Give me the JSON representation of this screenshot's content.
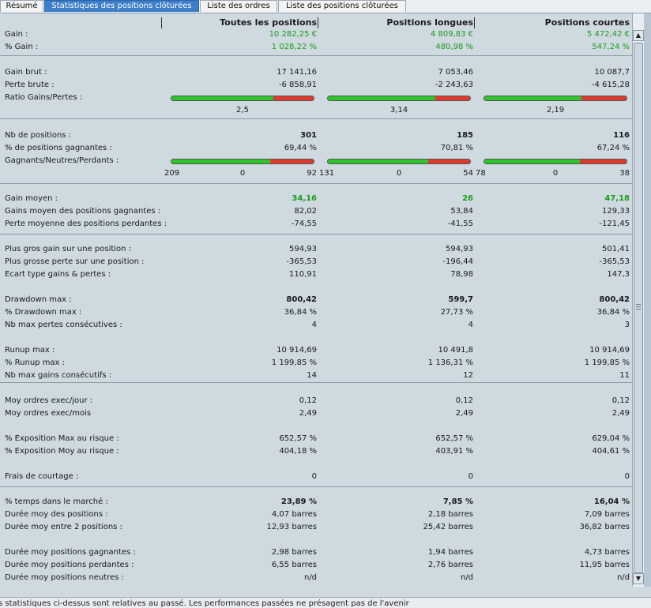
{
  "tabs": [
    {
      "label": "Résumé"
    },
    {
      "label": "Statistiques des positions clôturées"
    },
    {
      "label": "Liste des ordres"
    },
    {
      "label": "Liste des positions clôturées"
    }
  ],
  "headers": {
    "all": "Toutes les positions",
    "long": "Positions longues",
    "short": "Positions courtes"
  },
  "rows": {
    "gain": {
      "label": "Gain :",
      "v": [
        "10 282,25 €",
        "4 809,83 €",
        "5 472,42 €"
      ]
    },
    "pct_gain": {
      "label": "% Gain :",
      "v": [
        "1 028,22 %",
        "480,98 %",
        "547,24 %"
      ]
    },
    "gain_brut": {
      "label": "Gain brut :",
      "v": [
        "17 141,16",
        "7 053,46",
        "10 087,7"
      ]
    },
    "perte_brute": {
      "label": "Perte brute :",
      "v": [
        "-6 858,91",
        "-2 243,63",
        "-4 615,28"
      ]
    },
    "ratio": {
      "label": "Ratio Gains/Pertes :",
      "v": [
        "2,5",
        "3,14",
        "2,19"
      ],
      "green_fraction": [
        0.714,
        0.758,
        0.686
      ]
    },
    "nb_pos": {
      "label": "Nb de positions :",
      "v": [
        "301",
        "185",
        "116"
      ]
    },
    "pct_gagnantes": {
      "label": "% de positions gagnantes :",
      "v": [
        "69,44 %",
        "70,81 %",
        "67,24 %"
      ]
    },
    "gnp": {
      "label": "Gagnants/Neutres/Perdants :",
      "w": [
        "209",
        "131",
        "78"
      ],
      "n": [
        "0",
        "0",
        "0"
      ],
      "l": [
        "92",
        "54",
        "38"
      ],
      "green_fraction": [
        0.694,
        0.708,
        0.672
      ]
    },
    "gain_moyen": {
      "label": "Gain moyen :",
      "v": [
        "34,16",
        "26",
        "47,18"
      ]
    },
    "gains_moy_gagn": {
      "label": "Gains moyen des positions gagnantes :",
      "v": [
        "82,02",
        "53,84",
        "129,33"
      ]
    },
    "perte_moy_perd": {
      "label": "Perte moyenne des positions perdantes :",
      "v": [
        "-74,55",
        "-41,55",
        "-121,45"
      ]
    },
    "plus_gros_gain": {
      "label": "Plus gros gain sur une position :",
      "v": [
        "594,93",
        "594,93",
        "501,41"
      ]
    },
    "plus_grosse_perte": {
      "label": "Plus grosse perte sur une position :",
      "v": [
        "-365,53",
        "-196,44",
        "-365,53"
      ]
    },
    "ecart_type": {
      "label": "Ecart type gains & pertes :",
      "v": [
        "110,91",
        "78,98",
        "147,3"
      ]
    },
    "drawdown": {
      "label": "Drawdown max :",
      "v": [
        "800,42",
        "599,7",
        "800,42"
      ]
    },
    "pct_drawdown": {
      "label": "% Drawdown max :",
      "v": [
        "36,84 %",
        "27,73 %",
        "36,84 %"
      ]
    },
    "nb_pertes_cons": {
      "label": "Nb max pertes consécutives :",
      "v": [
        "4",
        "4",
        "3"
      ]
    },
    "runup": {
      "label": "Runup max :",
      "v": [
        "10 914,69",
        "10 491,8",
        "10 914,69"
      ]
    },
    "pct_runup": {
      "label": "% Runup max :",
      "v": [
        "1 199,85 %",
        "1 136,31 %",
        "1 199,85 %"
      ]
    },
    "nb_gains_cons": {
      "label": "Nb max gains consécutifs :",
      "v": [
        "14",
        "12",
        "11"
      ]
    },
    "ordres_jour": {
      "label": "Moy ordres exec/jour :",
      "v": [
        "0,12",
        "0,12",
        "0,12"
      ]
    },
    "ordres_mois": {
      "label": "Moy ordres exec/mois",
      "v": [
        "2,49",
        "2,49",
        "2,49"
      ]
    },
    "expo_max": {
      "label": "% Exposition Max au risque :",
      "v": [
        "652,57 %",
        "652,57 %",
        "629,04 %"
      ]
    },
    "expo_moy": {
      "label": "% Exposition Moy au risque :",
      "v": [
        "404,18 %",
        "403,91 %",
        "404,61 %"
      ]
    },
    "frais": {
      "label": "Frais de courtage :",
      "v": [
        "0",
        "0",
        "0"
      ]
    },
    "temps_marche": {
      "label": "% temps dans le marché :",
      "v": [
        "23,89 %",
        "7,85 %",
        "16,04 %"
      ]
    },
    "duree_moy_pos": {
      "label": "Durée moy des positions :",
      "v": [
        "4,07 barres",
        "2,18 barres",
        "7,09 barres"
      ]
    },
    "duree_entre": {
      "label": "Durée moy entre 2 positions :",
      "v": [
        "12,93 barres",
        "25,42 barres",
        "36,82 barres"
      ]
    },
    "duree_gagn": {
      "label": "Durée moy positions gagnantes :",
      "v": [
        "2,98 barres",
        "1,94 barres",
        "4,73 barres"
      ]
    },
    "duree_perd": {
      "label": "Durée moy positions perdantes :",
      "v": [
        "6,55 barres",
        "2,76 barres",
        "11,95 barres"
      ]
    },
    "duree_neutres": {
      "label": "Durée moy positions neutres :",
      "v": [
        "n/d",
        "n/d",
        "n/d"
      ]
    }
  },
  "footer": "s statistiques ci-dessus sont relatives au passé. Les performances passées ne présagent pas de l'avenir",
  "colors": {
    "accent": "#3d7ec9",
    "green_value": "#1a9c1a",
    "bar_green": "#2ec42a",
    "bar_red": "#e03a2f",
    "panel": "#cfd9e0"
  },
  "scrollbar": {
    "up_icon": "arrow-up-icon",
    "down_icon": "arrow-down-icon"
  }
}
